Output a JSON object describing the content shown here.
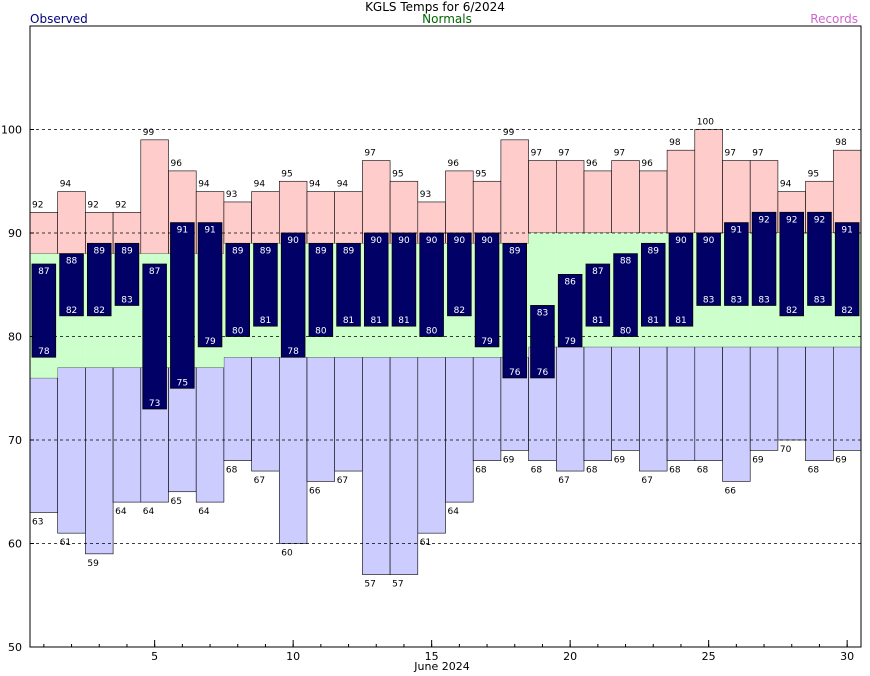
{
  "chart_data": {
    "type": "bar",
    "title": "KGLS Temps for 6/2024",
    "xlabel": "June 2024",
    "ylabel": "",
    "ylim": [
      50,
      110
    ],
    "xlim": [
      0.5,
      30.5
    ],
    "yticks": [
      50,
      60,
      70,
      80,
      90,
      100
    ],
    "xticks": [
      5,
      10,
      15,
      20,
      25,
      30
    ],
    "gridlines": [
      60,
      70,
      80,
      90,
      100
    ],
    "legend": {
      "observed": "Observed",
      "normals": "Normals",
      "records": "Records"
    },
    "days": [
      1,
      2,
      3,
      4,
      5,
      6,
      7,
      8,
      9,
      10,
      11,
      12,
      13,
      14,
      15,
      16,
      17,
      18,
      19,
      20,
      21,
      22,
      23,
      24,
      25,
      26,
      27,
      28,
      29,
      30
    ],
    "observed_high": [
      87,
      88,
      89,
      89,
      87,
      91,
      91,
      89,
      89,
      90,
      89,
      89,
      90,
      90,
      90,
      90,
      90,
      89,
      83,
      86,
      87,
      88,
      89,
      90,
      90,
      91,
      92,
      92,
      92,
      91
    ],
    "observed_low": [
      78,
      82,
      82,
      83,
      73,
      75,
      79,
      80,
      81,
      78,
      80,
      81,
      81,
      81,
      80,
      82,
      79,
      76,
      76,
      79,
      81,
      80,
      81,
      81,
      83,
      83,
      83,
      82,
      83,
      82
    ],
    "normal_high": [
      88,
      88,
      88,
      88,
      88,
      88,
      88,
      89,
      89,
      89,
      89,
      89,
      89,
      89,
      89,
      89,
      89,
      89,
      90,
      90,
      90,
      90,
      90,
      90,
      90,
      90,
      90,
      90,
      90,
      90
    ],
    "normal_low": [
      76,
      77,
      77,
      77,
      77,
      77,
      77,
      78,
      78,
      78,
      78,
      78,
      78,
      78,
      78,
      78,
      78,
      78,
      79,
      79,
      79,
      79,
      79,
      79,
      79,
      79,
      79,
      79,
      79,
      79
    ],
    "record_high": [
      92,
      94,
      92,
      92,
      99,
      96,
      94,
      93,
      94,
      95,
      94,
      94,
      97,
      95,
      93,
      96,
      95,
      99,
      97,
      97,
      96,
      97,
      96,
      98,
      100,
      97,
      97,
      94,
      95,
      98
    ],
    "record_low": [
      63,
      61,
      59,
      64,
      64,
      65,
      64,
      68,
      67,
      60,
      66,
      67,
      57,
      57,
      61,
      64,
      68,
      69,
      68,
      67,
      68,
      69,
      67,
      68,
      68,
      66,
      69,
      70,
      68,
      69
    ],
    "colors": {
      "observed": "#000066",
      "observed_label": "#000080",
      "normals": "#ccffcc",
      "normals_label": "#006600",
      "records_high": "#ffcccc",
      "records_low": "#ccccff",
      "records_label": "#cc66cc",
      "grid": "#000000"
    }
  }
}
